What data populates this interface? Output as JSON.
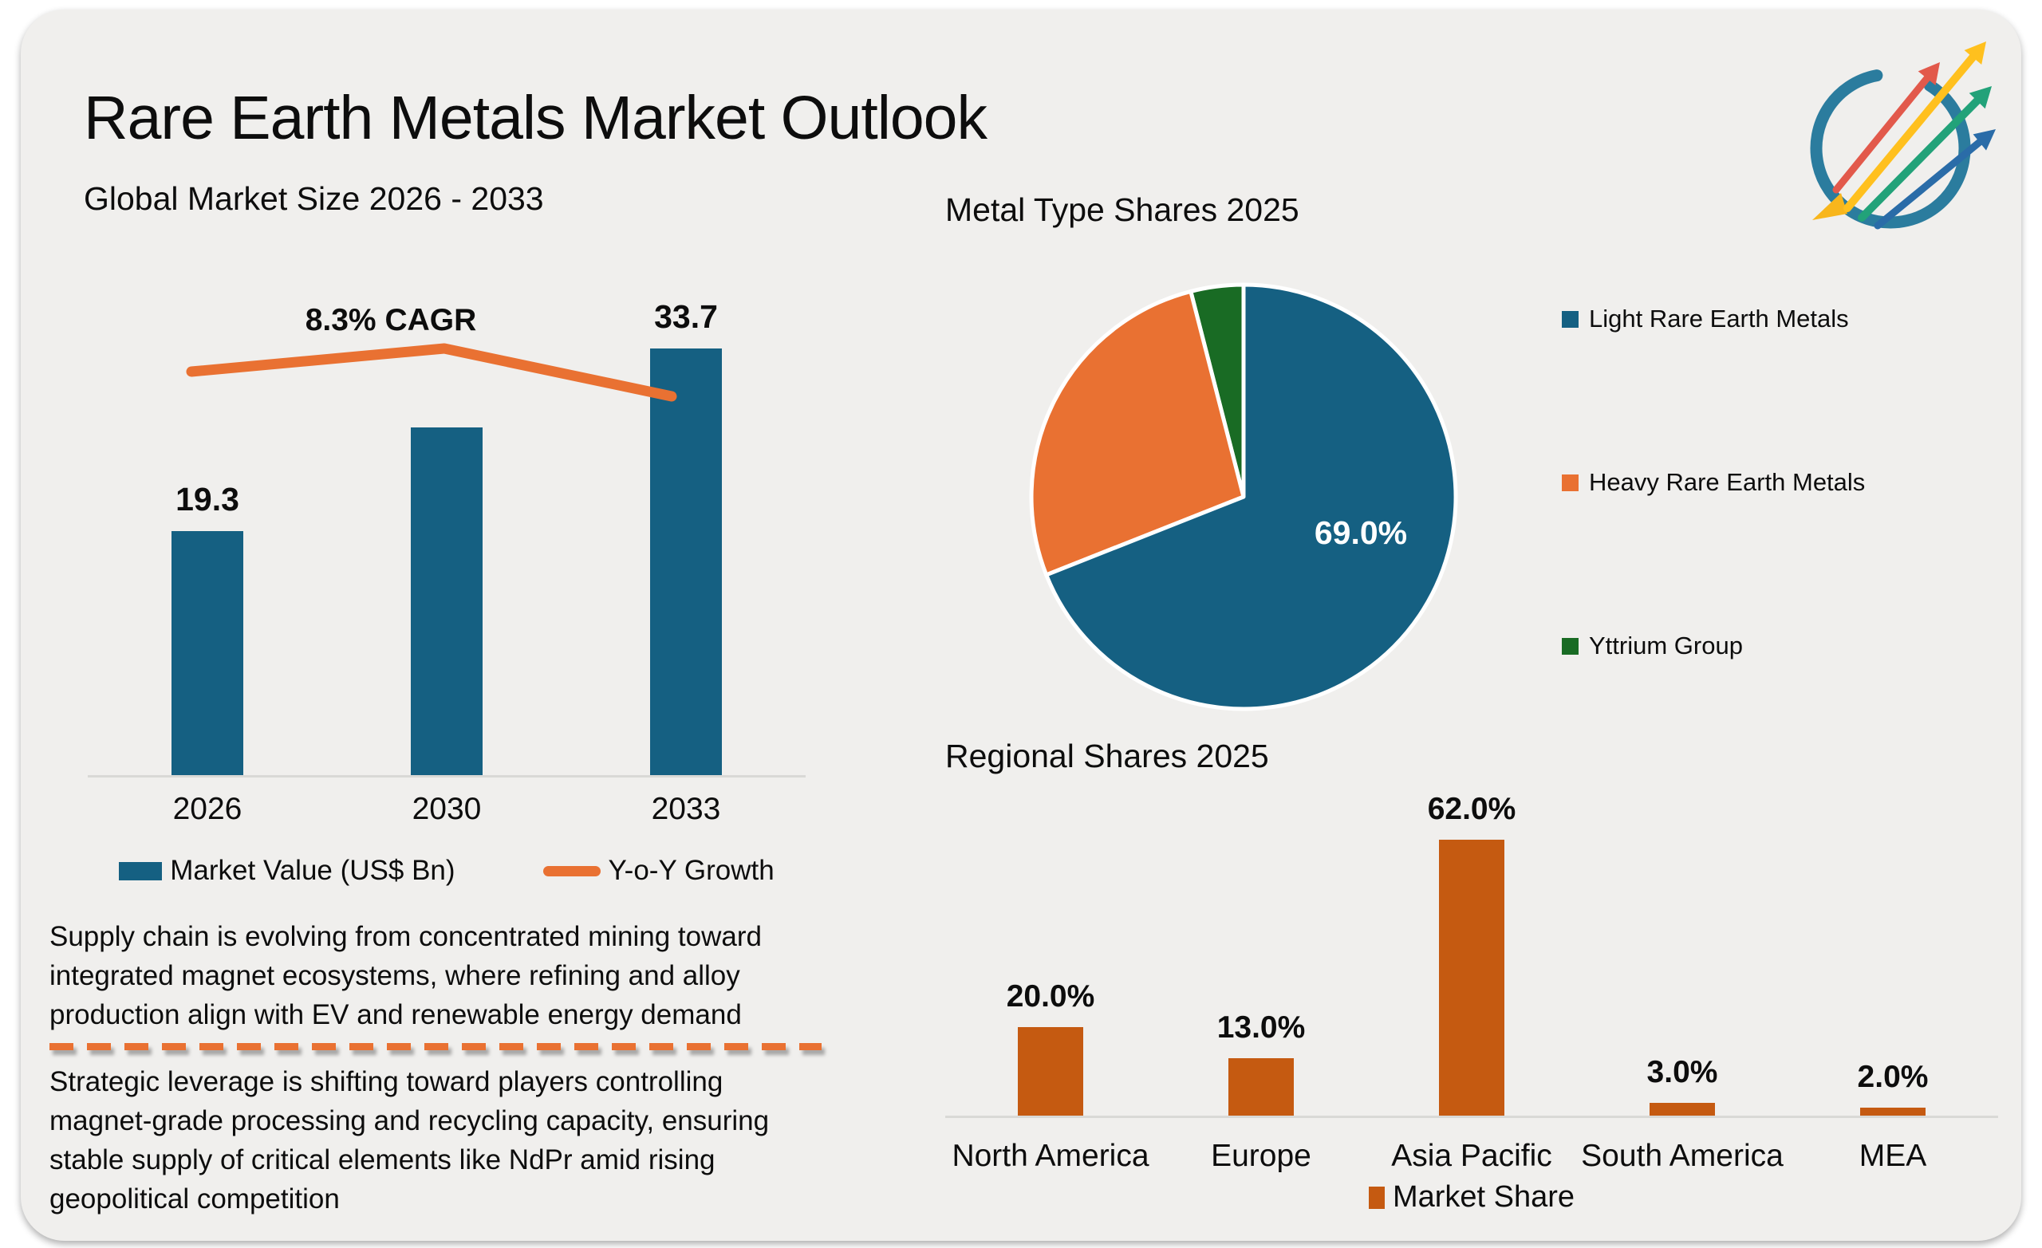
{
  "page": {
    "title": "Rare Earth Metals Market Outlook"
  },
  "icons": {
    "logo": "growth-arrows-circle-logo"
  },
  "colors": {
    "blue": "#156082",
    "orange": "#E97132",
    "green": "#196B24",
    "rust": "#C55A11",
    "axis": "#D9D9D6",
    "card_bg": "#F0EFED",
    "pie_label_text": "#FFFFFF"
  },
  "chart_data": [
    {
      "type": "bar",
      "title": "Global Market Size 2026 - 2033",
      "categories": [
        "2026",
        "2030",
        "2033"
      ],
      "series": [
        {
          "name": "Market Value (US$ Bn)",
          "type": "bar",
          "values": [
            19.3,
            27.5,
            33.7
          ],
          "data_labels": [
            "19.3",
            "",
            "33.7"
          ]
        },
        {
          "name": "Y-o-Y Growth",
          "type": "line",
          "annotation": "8.3% CAGR"
        }
      ],
      "ylim": [
        0,
        37
      ],
      "grid": false,
      "legend_position": "bottom"
    },
    {
      "type": "pie",
      "title": "Metal Type Shares 2025",
      "labels": [
        "Light Rare Earth Metals",
        "Heavy Rare Earth Metals",
        "Yttrium Group"
      ],
      "values": [
        69,
        27,
        4
      ],
      "colors": [
        "#156082",
        "#E97132",
        "#196B24"
      ],
      "data_labels": [
        "69.0%",
        "",
        ""
      ],
      "legend_position": "right"
    },
    {
      "type": "bar",
      "title": "Regional Shares 2025",
      "categories": [
        "North America",
        "Europe",
        "Asia Pacific",
        "South America",
        "MEA"
      ],
      "values": [
        20,
        13,
        62,
        3,
        2
      ],
      "data_labels": [
        "20.0%",
        "13.0%",
        "62.0%",
        "3.0%",
        "2.0%"
      ],
      "series_name": "Market Share",
      "ylim": [
        0,
        70
      ],
      "grid": false,
      "legend_position": "bottom"
    }
  ],
  "notes": {
    "paragraph1_lines": [
      "Supply chain is evolving from concentrated mining toward",
      "integrated magnet ecosystems, where refining and alloy",
      "production align with EV and renewable energy demand"
    ],
    "paragraph2_lines": [
      "Strategic leverage is shifting toward players controlling",
      "magnet-grade processing and recycling capacity, ensuring",
      "stable supply of critical elements like NdPr amid rising",
      "geopolitical competition"
    ]
  }
}
